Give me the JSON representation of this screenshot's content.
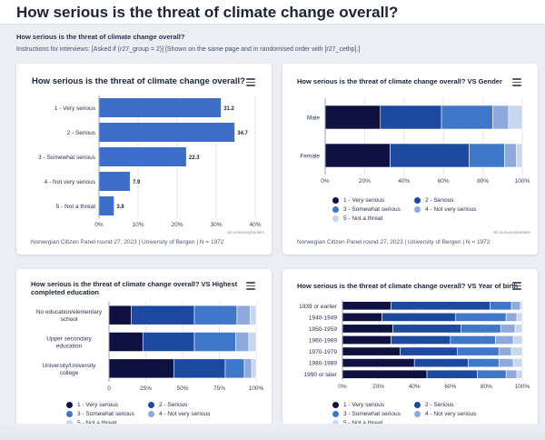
{
  "page": {
    "title": "How serious is the threat of climate change overall?",
    "subtitle": "How serious is the threat of climate change overall?",
    "instructions": "Instructions for interviews: [Asked if (r27_group = 2)] [Shown on the same page and in randomised order with [r27_cethp].]"
  },
  "colors": {
    "very_serious": "#0f1240",
    "serious": "#1d4aa0",
    "somewhat": "#3f78c8",
    "not_very": "#8eaadc",
    "not_threat": "#c8d6f0",
    "single_bar": "#3e6fc8",
    "grid": "#e3e5ec"
  },
  "legend": [
    "1 - Very serious",
    "2 - Serious",
    "3 - Somewhat serious",
    "4 - Not very serious",
    "5 - Not a threat"
  ],
  "overall": {
    "title": "How serious is the threat of climate change overall?",
    "footnote": "Norwegian Citizen Panel round 27, 2023 | University of Bergen | N = 1972",
    "credit": "skl.no/surveybanken"
  },
  "gender": {
    "title": "How serious is the threat of climate change overall? VS Gender",
    "footnote": "Norwegian Citizen Panel round 27, 2023 | University of Bergen | N = 1972",
    "credit": "skl.no/surveybanken"
  },
  "education": {
    "title": "How serious is the threat of climate change overall? VS Highest completed education"
  },
  "birth": {
    "title": "How serious is the threat of climate change overall? VS Year of birth"
  },
  "chart_data": [
    {
      "type": "bar",
      "orientation": "horizontal",
      "title": "How serious is the threat of climate change overall?",
      "categories": [
        "1 - Very serious",
        "2 - Serious",
        "3 - Somewhat serious",
        "4 - Not very serious",
        "5 - Not a threat"
      ],
      "values": [
        31.2,
        34.7,
        22.3,
        7.9,
        3.8
      ],
      "xlim": [
        0,
        40
      ],
      "xticks": [
        "0%",
        "10%",
        "20%",
        "30%",
        "40%"
      ],
      "grid": true
    },
    {
      "type": "bar",
      "orientation": "horizontal",
      "stacked": true,
      "title": "How serious is the threat of climate change overall? VS Gender",
      "categories": [
        "Male",
        "Female"
      ],
      "series": [
        {
          "name": "1 - Very serious",
          "values": [
            28,
            33
          ]
        },
        {
          "name": "2 - Serious",
          "values": [
            31,
            40
          ]
        },
        {
          "name": "3 - Somewhat serious",
          "values": [
            26,
            18
          ]
        },
        {
          "name": "4 - Not very serious",
          "values": [
            8,
            6
          ]
        },
        {
          "name": "5 - Not a threat",
          "values": [
            7,
            3
          ]
        }
      ],
      "xlim": [
        0,
        100
      ],
      "xticks": [
        "0%",
        "20%",
        "40%",
        "60%",
        "80%",
        "100%"
      ],
      "legend": "bottom"
    },
    {
      "type": "bar",
      "orientation": "horizontal",
      "stacked": true,
      "title": "How serious is the threat of climate change overall? VS Highest completed education",
      "categories": [
        "No education/elementary school",
        "Upper secondary education",
        "University/University college"
      ],
      "series": [
        {
          "name": "1 - Very serious",
          "values": [
            15,
            23,
            44
          ]
        },
        {
          "name": "2 - Serious",
          "values": [
            43,
            35,
            35
          ]
        },
        {
          "name": "3 - Somewhat serious",
          "values": [
            29,
            28,
            13
          ]
        },
        {
          "name": "4 - Not very serious",
          "values": [
            9,
            9,
            5
          ]
        },
        {
          "name": "5 - Not a threat",
          "values": [
            4,
            5,
            3
          ]
        }
      ],
      "xlim": [
        0,
        100
      ],
      "xticks": [
        "0",
        "25%",
        "50%",
        "75%",
        "100%"
      ],
      "legend": "bottom"
    },
    {
      "type": "bar",
      "orientation": "horizontal",
      "stacked": true,
      "title": "How serious is the threat of climate change overall? VS Year of birth",
      "categories": [
        "1939 or earlier",
        "1940-1949",
        "1950-1959",
        "1960-1969",
        "1970-1979",
        "1980-1989",
        "1990 or later"
      ],
      "series": [
        {
          "name": "1 - Very serious",
          "values": [
            27,
            22,
            28,
            27,
            32,
            40,
            47
          ]
        },
        {
          "name": "2 - Serious",
          "values": [
            55,
            41,
            38,
            33,
            32,
            30,
            28
          ]
        },
        {
          "name": "3 - Somewhat serious",
          "values": [
            12,
            28,
            22,
            25,
            23,
            17,
            16
          ]
        },
        {
          "name": "4 - Not very serious",
          "values": [
            5,
            6,
            8,
            10,
            7,
            8,
            6
          ]
        },
        {
          "name": "5 - Not a threat",
          "values": [
            1,
            3,
            4,
            5,
            6,
            5,
            3
          ]
        }
      ],
      "xlim": [
        0,
        100
      ],
      "xticks": [
        "0%",
        "20%",
        "40%",
        "60%",
        "80%",
        "100%"
      ],
      "legend": "bottom"
    }
  ]
}
